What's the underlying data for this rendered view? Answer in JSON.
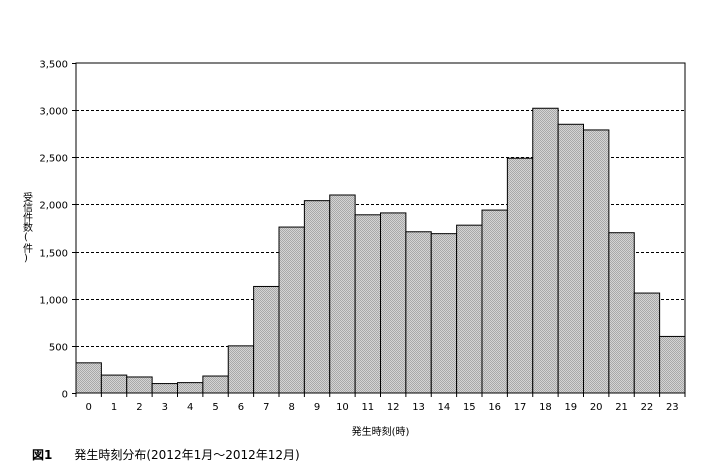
{
  "chart_data": {
    "type": "bar",
    "categories": [
      "0",
      "1",
      "2",
      "3",
      "4",
      "5",
      "6",
      "7",
      "8",
      "9",
      "10",
      "11",
      "12",
      "13",
      "14",
      "15",
      "16",
      "17",
      "18",
      "19",
      "20",
      "21",
      "22",
      "23"
    ],
    "values": [
      320,
      190,
      170,
      100,
      110,
      180,
      500,
      1130,
      1760,
      2040,
      2100,
      1890,
      1910,
      1710,
      1690,
      1780,
      1940,
      2490,
      3020,
      2850,
      2790,
      1700,
      1060,
      600
    ],
    "xlabel": "発生時刻(時)",
    "ylabel": "受信件数(件)",
    "ylim": [
      0,
      3500
    ],
    "yticks": [
      0,
      500,
      1000,
      1500,
      2000,
      2500,
      3000,
      3500
    ],
    "ytick_labels": [
      "0",
      "500",
      "1,000",
      "1,500",
      "2,000",
      "2,500",
      "3,000",
      "3,500"
    ],
    "grid": "horizontal dashed",
    "bar_color": "#c0c0c0"
  },
  "caption": {
    "figure_no": "図1",
    "text": "発生時刻分布(2012年1月〜2012年12月)"
  }
}
